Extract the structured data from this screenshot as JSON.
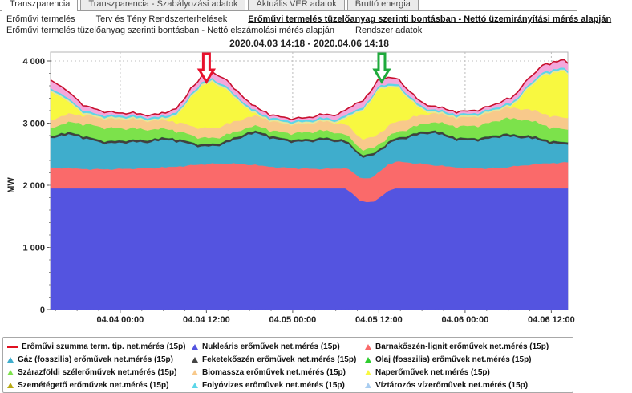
{
  "tabs": {
    "items": [
      {
        "label": "Transzparencia",
        "active": true
      },
      {
        "label": "Transzparencia - Szabályozási adatok",
        "active": false
      },
      {
        "label": "Aktuális VER adatok",
        "active": false
      },
      {
        "label": "Bruttó energia",
        "active": false
      }
    ]
  },
  "menu": {
    "rows": [
      [
        {
          "label": "Erőművi termelés",
          "active": false
        },
        {
          "label": "Terv és Tény Rendszerterhelések",
          "active": false
        },
        {
          "label": "Erőművi termelés tüzelőanyag szerinti bontásban - Nettó üzemirányítási mérés alapján",
          "active": true
        }
      ],
      [
        {
          "label": "Erőművi termelés tüzelőanyag szerinti bontásban - Nettó elszámolási mérés alapján",
          "active": false
        },
        {
          "label": "Rendszer adatok",
          "active": false
        }
      ]
    ]
  },
  "chart_data": {
    "type": "area",
    "stacked": true,
    "title": "2020.04.03 14:18 - 2020.04.06 14:18",
    "ylabel": "MW",
    "ylim": [
      0,
      4000
    ],
    "y_ticks": [
      {
        "value": 0,
        "label": "0"
      },
      {
        "value": 1000,
        "label": "1 000"
      },
      {
        "value": 2000,
        "label": "2 000"
      },
      {
        "value": 3000,
        "label": "3 000"
      },
      {
        "value": 4000,
        "label": "4 000"
      }
    ],
    "x_unit": "hours from 2020.04.03 14:18",
    "x_hours_total": 72,
    "x_ticks": [
      {
        "hour": 9.7,
        "label": "04.04 00:00"
      },
      {
        "hour": 21.7,
        "label": "04.04 12:00"
      },
      {
        "hour": 33.7,
        "label": "04.05 00:00"
      },
      {
        "hour": 45.7,
        "label": "04.05 12:00"
      },
      {
        "hour": 57.7,
        "label": "04.06 00:00"
      },
      {
        "hour": 69.7,
        "label": "04.06 12:00"
      }
    ],
    "grid": true,
    "total_line": {
      "name": "Erőművi szumma term. tip. net.mérés (15p)",
      "color": "#c8102e"
    },
    "series": [
      {
        "name": "Nukleáris erőművek net.mérés (15p)",
        "color": "#5454e0",
        "values": [
          1950,
          1950,
          1950,
          1950,
          1950,
          1950,
          1950,
          1950,
          1950,
          1950,
          1950,
          1950,
          1950,
          1950,
          1950,
          1950,
          1950,
          1950,
          1950,
          1950,
          1950,
          1950,
          1950,
          1950,
          1950,
          1950,
          1950,
          1950,
          1950,
          1950,
          1950,
          1950,
          1950,
          1950,
          1950,
          1950,
          1950,
          1950,
          1950,
          1950,
          1950,
          1950,
          1870,
          1760,
          1730,
          1740,
          1820,
          1910,
          1950,
          1950,
          1950,
          1950,
          1950,
          1950,
          1950,
          1950,
          1950,
          1950,
          1950,
          1950,
          1950,
          1950,
          1950,
          1950,
          1950,
          1950,
          1950,
          1950,
          1950,
          1950,
          1950,
          1950,
          1950
        ]
      },
      {
        "name": "Barnakőszén-lignit erőművek net.mérés (15p)",
        "color": "#fa6a6a",
        "values": [
          335,
          330,
          325,
          320,
          318,
          315,
          312,
          310,
          310,
          312,
          315,
          318,
          320,
          322,
          325,
          330,
          338,
          348,
          358,
          368,
          378,
          388,
          395,
          400,
          402,
          400,
          395,
          388,
          378,
          368,
          358,
          348,
          340,
          332,
          326,
          322,
          318,
          316,
          315,
          316,
          320,
          330,
          345,
          365,
          385,
          405,
          420,
          428,
          430,
          425,
          415,
          402,
          390,
          378,
          366,
          355,
          345,
          336,
          330,
          326,
          324,
          325,
          330,
          338,
          348,
          360,
          372,
          384,
          395,
          405,
          412,
          416,
          420
        ]
      },
      {
        "name": "Gáz (fosszilis) erőművek net.mérés (15p)",
        "color": "#3fadcc",
        "values": [
          480,
          500,
          520,
          540,
          520,
          490,
          460,
          430,
          420,
          415,
          420,
          425,
          420,
          415,
          420,
          430,
          440,
          430,
          400,
          360,
          320,
          290,
          280,
          285,
          310,
          350,
          400,
          450,
          490,
          510,
          490,
          460,
          440,
          430,
          425,
          430,
          440,
          450,
          460,
          450,
          430,
          400,
          380,
          360,
          350,
          340,
          330,
          330,
          340,
          370,
          410,
          450,
          490,
          510,
          500,
          480,
          460,
          450,
          445,
          450,
          460,
          475,
          490,
          505,
          480,
          460,
          440,
          410,
          380,
          350,
          320,
          300,
          285
        ]
      },
      {
        "name": "Feketekőszén erőművek net.mérés (15p)",
        "color": "#404040",
        "values": 35
      },
      {
        "name": "Olaj (fosszilis) erőművek net.mérés (15p)",
        "color": "#2ecc2e",
        "values": 5
      },
      {
        "name": "Szárazföldi szélerőművek net.mérés (15p)",
        "color": "#7ce24b",
        "values": [
          125,
          135,
          150,
          165,
          180,
          195,
          205,
          210,
          208,
          200,
          190,
          182,
          175,
          168,
          160,
          150,
          140,
          130,
          122,
          115,
          108,
          100,
          95,
          90,
          88,
          86,
          84,
          82,
          80,
          80,
          82,
          85,
          90,
          95,
          100,
          105,
          110,
          112,
          110,
          106,
          100,
          95,
          90,
          85,
          82,
          80,
          78,
          80,
          85,
          92,
          100,
          110,
          120,
          132,
          145,
          158,
          170,
          182,
          190,
          196,
          200,
          212,
          224,
          236,
          246,
          252,
          248,
          240,
          230,
          220,
          212,
          206,
          200
        ]
      },
      {
        "name": "Biomassza erőművek net.mérés (15p)",
        "color": "#f8c98b",
        "values": [
          130,
          132,
          134,
          136,
          138,
          140,
          142,
          144,
          146,
          148,
          150,
          150,
          148,
          146,
          144,
          142,
          140,
          140,
          142,
          146,
          150,
          155,
          160,
          165,
          168,
          170,
          170,
          168,
          164,
          160,
          156,
          152,
          148,
          145,
          143,
          142,
          142,
          144,
          148,
          153,
          158,
          163,
          168,
          172,
          175,
          176,
          175,
          172,
          168,
          164,
          160,
          156,
          152,
          148,
          145,
          143,
          142,
          142,
          144,
          148,
          153,
          158,
          163,
          168,
          172,
          175,
          177,
          179,
          181,
          183,
          185,
          187,
          188
        ]
      },
      {
        "name": "Naperőművek net.mérés (15p)",
        "color": "#f8f840",
        "values": [
          450,
          360,
          260,
          150,
          60,
          10,
          0,
          0,
          0,
          0,
          0,
          0,
          0,
          0,
          0,
          0,
          10,
          70,
          180,
          340,
          520,
          680,
          720,
          690,
          610,
          490,
          340,
          185,
          70,
          10,
          0,
          0,
          0,
          0,
          0,
          0,
          0,
          0,
          0,
          0,
          15,
          90,
          230,
          400,
          520,
          640,
          700,
          620,
          560,
          440,
          300,
          160,
          60,
          8,
          0,
          0,
          0,
          0,
          0,
          0,
          0,
          0,
          0,
          0,
          20,
          115,
          280,
          400,
          540,
          640,
          700,
          740,
          700
        ]
      },
      {
        "name": "Szemétégető erőművek net.mérés (15p)",
        "color": "#e4e4a0",
        "values": 25
      },
      {
        "name": "Folyóvizes erőművek net.mérés (15p)",
        "color": "#5cd6e8",
        "values": 30
      },
      {
        "name": "Víztározós vízerőművek net.mérés (15p)",
        "color": "#f4a7dc",
        "values": [
          130,
          120,
          110,
          100,
          90,
          80,
          70,
          60,
          52,
          46,
          42,
          40,
          38,
          36,
          38,
          42,
          48,
          56,
          66,
          76,
          86,
          96,
          104,
          108,
          104,
          96,
          86,
          76,
          66,
          56,
          48,
          42,
          38,
          36,
          35,
          36,
          40,
          46,
          54,
          62,
          72,
          82,
          92,
          100,
          106,
          110,
          106,
          100,
          92,
          84,
          76,
          68,
          60,
          52,
          46,
          42,
          40,
          38,
          38,
          40,
          44,
          50,
          58,
          68,
          78,
          88,
          96,
          104,
          110,
          114,
          118,
          120,
          122
        ]
      }
    ],
    "annotations": [
      {
        "type": "down-arrow",
        "hour": 21.7,
        "color": "#e8112d"
      },
      {
        "type": "down-arrow",
        "hour": 46.1,
        "color": "#1faa3c"
      }
    ]
  },
  "legend": {
    "items": [
      {
        "label": "Erőművi szumma term. tip. net.mérés (15p)",
        "marker": "line",
        "color": "#e01020"
      },
      {
        "label": "Nukleáris erőművek net.mérés (15p)",
        "marker": "triangle",
        "color": "#5454e0"
      },
      {
        "label": "Barnakőszén-lignit erőművek net.mérés (15p)",
        "marker": "triangle",
        "color": "#fa6a6a"
      },
      {
        "label": "Gáz (fosszilis) erőművek net.mérés (15p)",
        "marker": "triangle",
        "color": "#3fadcc"
      },
      {
        "label": "Feketekőszén erőművek net.mérés (15p)",
        "marker": "triangle",
        "color": "#444444"
      },
      {
        "label": "Olaj (fosszilis) erőművek net.mérés (15p)",
        "marker": "triangle",
        "color": "#2ecc2e"
      },
      {
        "label": "Szárazföldi szélerőművek net.mérés (15p)",
        "marker": "triangle",
        "color": "#7ce24b"
      },
      {
        "label": "Biomassza erőművek net.mérés (15p)",
        "marker": "triangle",
        "color": "#f8c98b"
      },
      {
        "label": "Naperőművek net.mérés (15p)",
        "marker": "triangle",
        "color": "#f8f840"
      },
      {
        "label": "Szemétégető erőművek net.mérés (15p)",
        "marker": "triangle",
        "color": "#b8a811"
      },
      {
        "label": "Folyóvizes erőművek net.mérés (15p)",
        "marker": "triangle",
        "color": "#5cd6e8"
      },
      {
        "label": "Víztározós vízerőművek net.mérés (15p)",
        "marker": "triangle",
        "color": "#a9cdf0"
      }
    ]
  }
}
